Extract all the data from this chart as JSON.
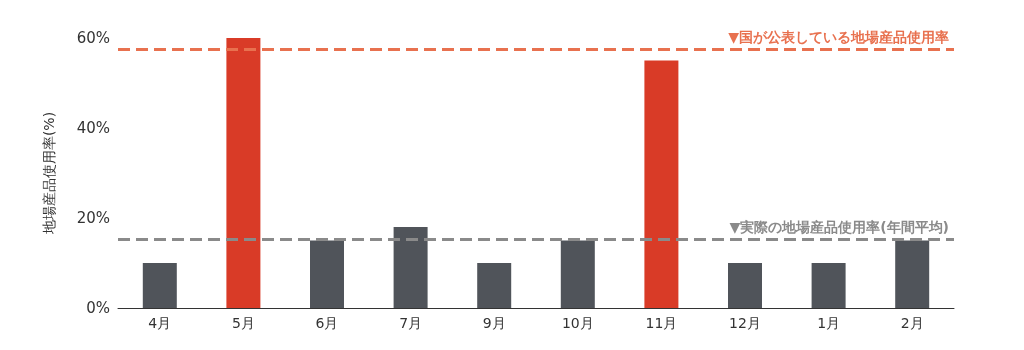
{
  "chart_data": {
    "type": "bar",
    "ylabel": "地場産品使用率(%)",
    "categories": [
      "4月",
      "5月",
      "6月",
      "7月",
      "9月",
      "10月",
      "11月",
      "12月",
      "1月",
      "2月"
    ],
    "values": [
      10,
      60,
      15,
      18,
      10,
      15,
      55,
      10,
      10,
      15
    ],
    "colors": [
      "#50545a",
      "#d93b27",
      "#50545a",
      "#50545a",
      "#50545a",
      "#50545a",
      "#d93b27",
      "#50545a",
      "#50545a",
      "#50545a"
    ],
    "ylim": [
      0,
      60
    ],
    "yticks": [
      {
        "value": 0,
        "label": "0%"
      },
      {
        "value": 20,
        "label": "20%"
      },
      {
        "value": 40,
        "label": "40%"
      },
      {
        "value": 60,
        "label": "60%"
      }
    ],
    "grid": false,
    "ref_lines": [
      {
        "axis": "y",
        "value": 57.5,
        "label": "▼国が公表している地場産品使用率",
        "color": "#e8714f",
        "line_style": "dashed"
      },
      {
        "axis": "y",
        "value": 15.3,
        "label": "▼実際の地場産品使用率(年間平均)",
        "color": "#8a8a8a",
        "line_style": "dashed"
      }
    ]
  }
}
